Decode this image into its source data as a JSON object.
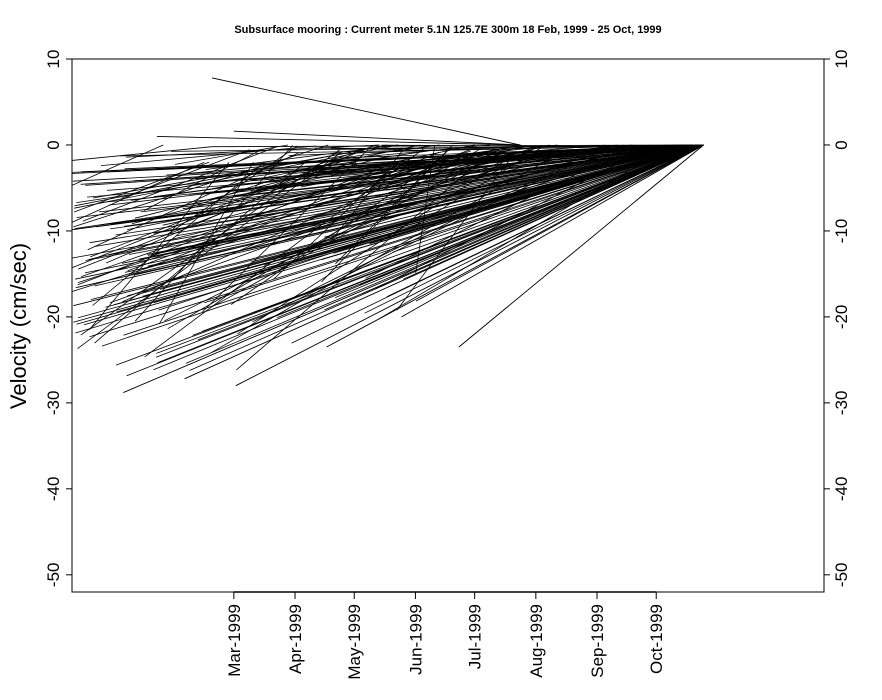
{
  "chart_data": {
    "type": "line",
    "title": "Subsurface mooring : Current meter  5.1N 125.7E   300m  18 Feb, 1999 - 25 Oct, 1999",
    "ylabel": "Velocity (cm/sec)",
    "xlabel": "",
    "ylim": [
      -52,
      10
    ],
    "yticks": [
      "10",
      "0",
      "-10",
      "-20",
      "-30",
      "-40",
      "-50"
    ],
    "ytick_values": [
      10,
      0,
      -10,
      -20,
      -30,
      -40,
      -50
    ],
    "xlim": [
      "1998-12-09",
      "1999-12-25"
    ],
    "xtick_labels": [
      "Mar-1999",
      "Apr-1999",
      "May-1999",
      "Jun-1999",
      "Jul-1999",
      "Aug-1999",
      "Sep-1999",
      "Oct-1999"
    ],
    "xtick_dates": [
      "1999-03-01",
      "1999-04-01",
      "1999-05-01",
      "1999-06-01",
      "1999-07-01",
      "1999-08-01",
      "1999-09-01",
      "1999-10-01"
    ],
    "grid": false,
    "series": [
      {
        "x": [
          "1998-12-09",
          "1999-02-18"
        ],
        "y": [
          -1.8,
          -0.2
        ]
      },
      {
        "x": [
          "1999-01-21",
          "1999-07-24"
        ],
        "y": [
          1.0,
          0.0
        ]
      },
      {
        "x": [
          "1999-02-18",
          "1999-07-24"
        ],
        "y": [
          7.8,
          0.0
        ]
      },
      {
        "x": [
          "1999-03-01",
          "1999-07-24"
        ],
        "y": [
          1.6,
          0.0
        ]
      },
      {
        "x": [
          "1999-02-18",
          "1999-10-25"
        ],
        "y": [
          -0.2,
          0.0
        ]
      },
      {
        "x": [
          "1999-05-25",
          "1999-10-25"
        ],
        "y": [
          -20.0,
          0.0
        ]
      },
      {
        "x": [
          "1999-06-23",
          "1999-10-25"
        ],
        "y": [
          -23.5,
          0.0
        ]
      },
      {
        "x": [
          "1999-03-02",
          "1999-10-25"
        ],
        "y": [
          -28.0,
          0.0
        ]
      },
      {
        "x": [
          "1999-01-04",
          "1999-10-25"
        ],
        "y": [
          -28.8,
          0.0
        ]
      },
      {
        "x": [
          "1999-02-04",
          "1999-10-25"
        ],
        "y": [
          -27.2,
          0.0
        ]
      },
      {
        "x": [
          "1999-04-17",
          "1999-10-25"
        ],
        "y": [
          -23.5,
          0.0
        ]
      }
    ],
    "min_velocity_by_date": {
      "x": [
        "1998-12-09",
        "1998-12-27",
        "1999-01-15",
        "1999-02-03",
        "1999-02-22",
        "1999-03-13",
        "1999-04-01",
        "1999-04-20",
        "1999-05-09",
        "1999-05-28",
        "1999-06-16",
        "1999-07-05",
        "1999-07-24",
        "1999-08-12",
        "1999-08-31",
        "1999-09-19",
        "1999-10-08",
        "1999-10-25"
      ],
      "y": [
        -23.5,
        -25.5,
        -28.8,
        -27.2,
        -26.5,
        -28.0,
        -24.0,
        -21.5,
        -21.0,
        -20.0,
        -23.5,
        -22.0,
        -18.0,
        -14.0,
        -10.0,
        -7.0,
        -3.5,
        0.0
      ]
    },
    "max_velocity_by_date": {
      "x": [
        "1998-12-09",
        "1998-12-27",
        "1999-01-15",
        "1999-02-03",
        "1999-02-22",
        "1999-03-13",
        "1999-04-01",
        "1999-04-20",
        "1999-05-09",
        "1999-05-28",
        "1999-06-16",
        "1999-07-05",
        "1999-07-24",
        "1999-08-12",
        "1999-08-31",
        "1999-09-19",
        "1999-10-08",
        "1999-10-25"
      ],
      "y": [
        -1.8,
        -1.3,
        -0.9,
        -0.5,
        -0.1,
        0.0,
        0.0,
        0.0,
        0.0,
        0.0,
        0.0,
        0.0,
        0.0,
        0.0,
        0.0,
        0.0,
        0.0,
        0.0
      ]
    }
  }
}
